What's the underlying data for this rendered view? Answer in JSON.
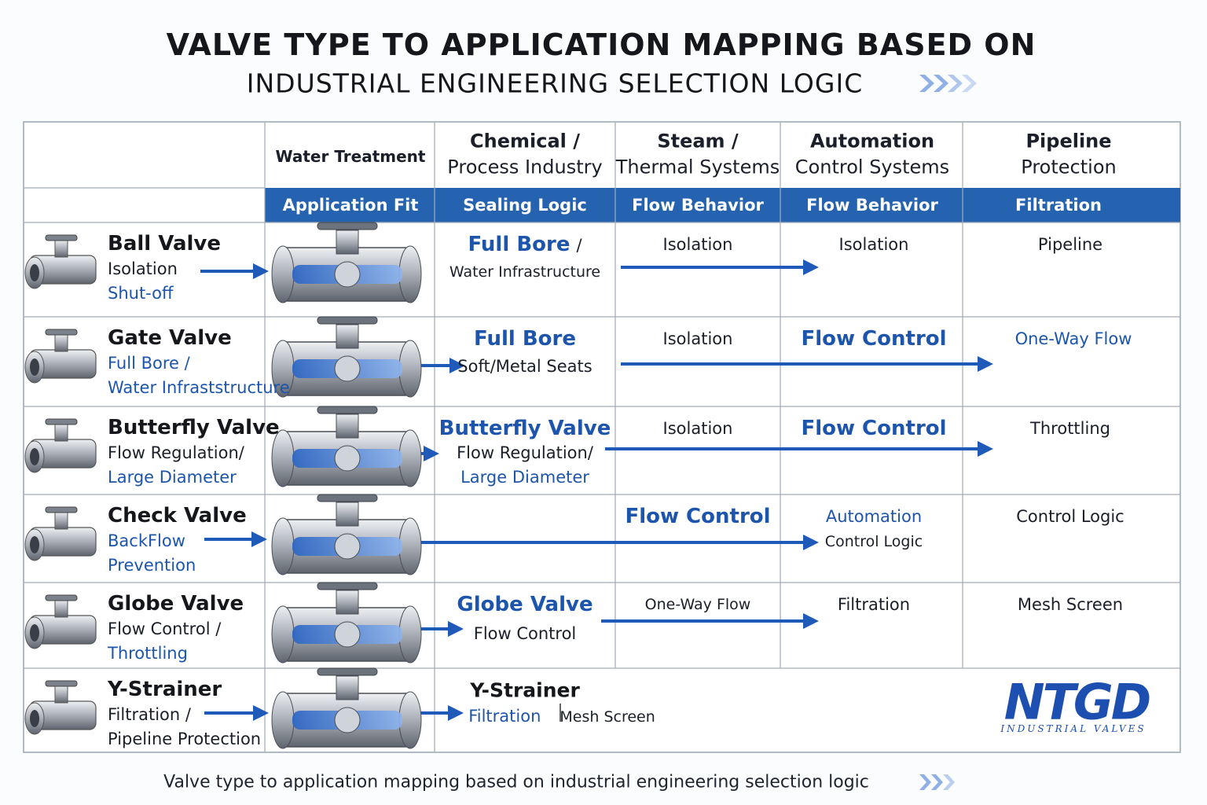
{
  "header": {
    "title": "VALVE TYPE TO APPLICATION MAPPING BASED ON",
    "subtitle": "INDUSTRIAL ENGINEERING SELECTION LOGIC"
  },
  "table": {
    "columns": [
      {
        "heading": [
          "Water Treatment"
        ],
        "criterion": "Application Fit"
      },
      {
        "heading": [
          "Chemical /",
          "Process Industry"
        ],
        "criterion": "Sealing Logic"
      },
      {
        "heading": [
          "Steam /",
          "Thermal Systems"
        ],
        "criterion": "Flow Behavior"
      },
      {
        "heading": [
          "Automation",
          "Control Systems"
        ],
        "criterion": "Flow Behavior"
      },
      {
        "heading": [
          "Pipeline",
          "Protection"
        ],
        "criterion": "Filtration"
      }
    ],
    "rows": [
      {
        "valve": "Ball Valve",
        "details": [
          "Isolation",
          "Shut-off"
        ],
        "cells": {
          "chemical": [
            [
              "Full Bore",
              "/"
            ],
            [
              "Water Infrastructure"
            ]
          ],
          "steam": [
            [
              "Isolation"
            ]
          ],
          "automation": [
            [
              "Isolation"
            ]
          ],
          "pipeline": [
            [
              "Pipeline"
            ]
          ]
        }
      },
      {
        "valve": "Gate Valve",
        "details": [
          "Full Bore /",
          "Water Infraststructure"
        ],
        "cells": {
          "chemical": [
            [
              "Full Bore"
            ],
            [
              "Soft/Metal Seats"
            ]
          ],
          "steam": [
            [
              "Isolation"
            ]
          ],
          "automation": [
            [
              "Flow Control"
            ]
          ],
          "pipeline": [
            [
              "One-Way Flow"
            ]
          ]
        }
      },
      {
        "valve": "Butterfly Valve",
        "details": [
          "Flow Regulation/",
          "Large Diameter"
        ],
        "cells": {
          "chemical": [
            [
              "Butterfly Valve"
            ],
            [
              "Flow Regulation/"
            ],
            [
              "Large Diameter"
            ]
          ],
          "steam": [
            [
              "Isolation"
            ]
          ],
          "automation": [
            [
              "Flow Control"
            ]
          ],
          "pipeline": [
            [
              "Throttling"
            ]
          ]
        }
      },
      {
        "valve": "Check Valve",
        "details": [
          "BackFlow",
          "Prevention"
        ],
        "cells": {
          "steam": [
            [
              "Flow Control"
            ]
          ],
          "automation": [
            [
              "Automation"
            ],
            [
              "Control Logic"
            ]
          ],
          "pipeline": [
            [
              "Control Logic"
            ]
          ]
        }
      },
      {
        "valve": "Globe Valve",
        "details": [
          "Flow Control /",
          "Throttling"
        ],
        "cells": {
          "chemical": [
            [
              "Globe Valve"
            ],
            [
              "Flow Control"
            ]
          ],
          "steam": [
            [
              "One-Way Flow"
            ]
          ],
          "automation": [
            [
              "Filtration"
            ]
          ],
          "pipeline": [
            [
              "Mesh Screen"
            ]
          ]
        }
      },
      {
        "valve": "Y-Strainer",
        "details": [
          "Filtration /",
          "Pipeline Protection"
        ],
        "cells": {
          "chemical": [
            [
              "Y-Strainer"
            ],
            [
              "Filtration",
              "Mesh Screen"
            ]
          ]
        }
      }
    ]
  },
  "logo": {
    "name": "NTGD",
    "tagline": "INDUSTRIAL VALVES"
  },
  "footer": {
    "caption": "Valve type to application mapping based on industrial engineering selection logic"
  }
}
